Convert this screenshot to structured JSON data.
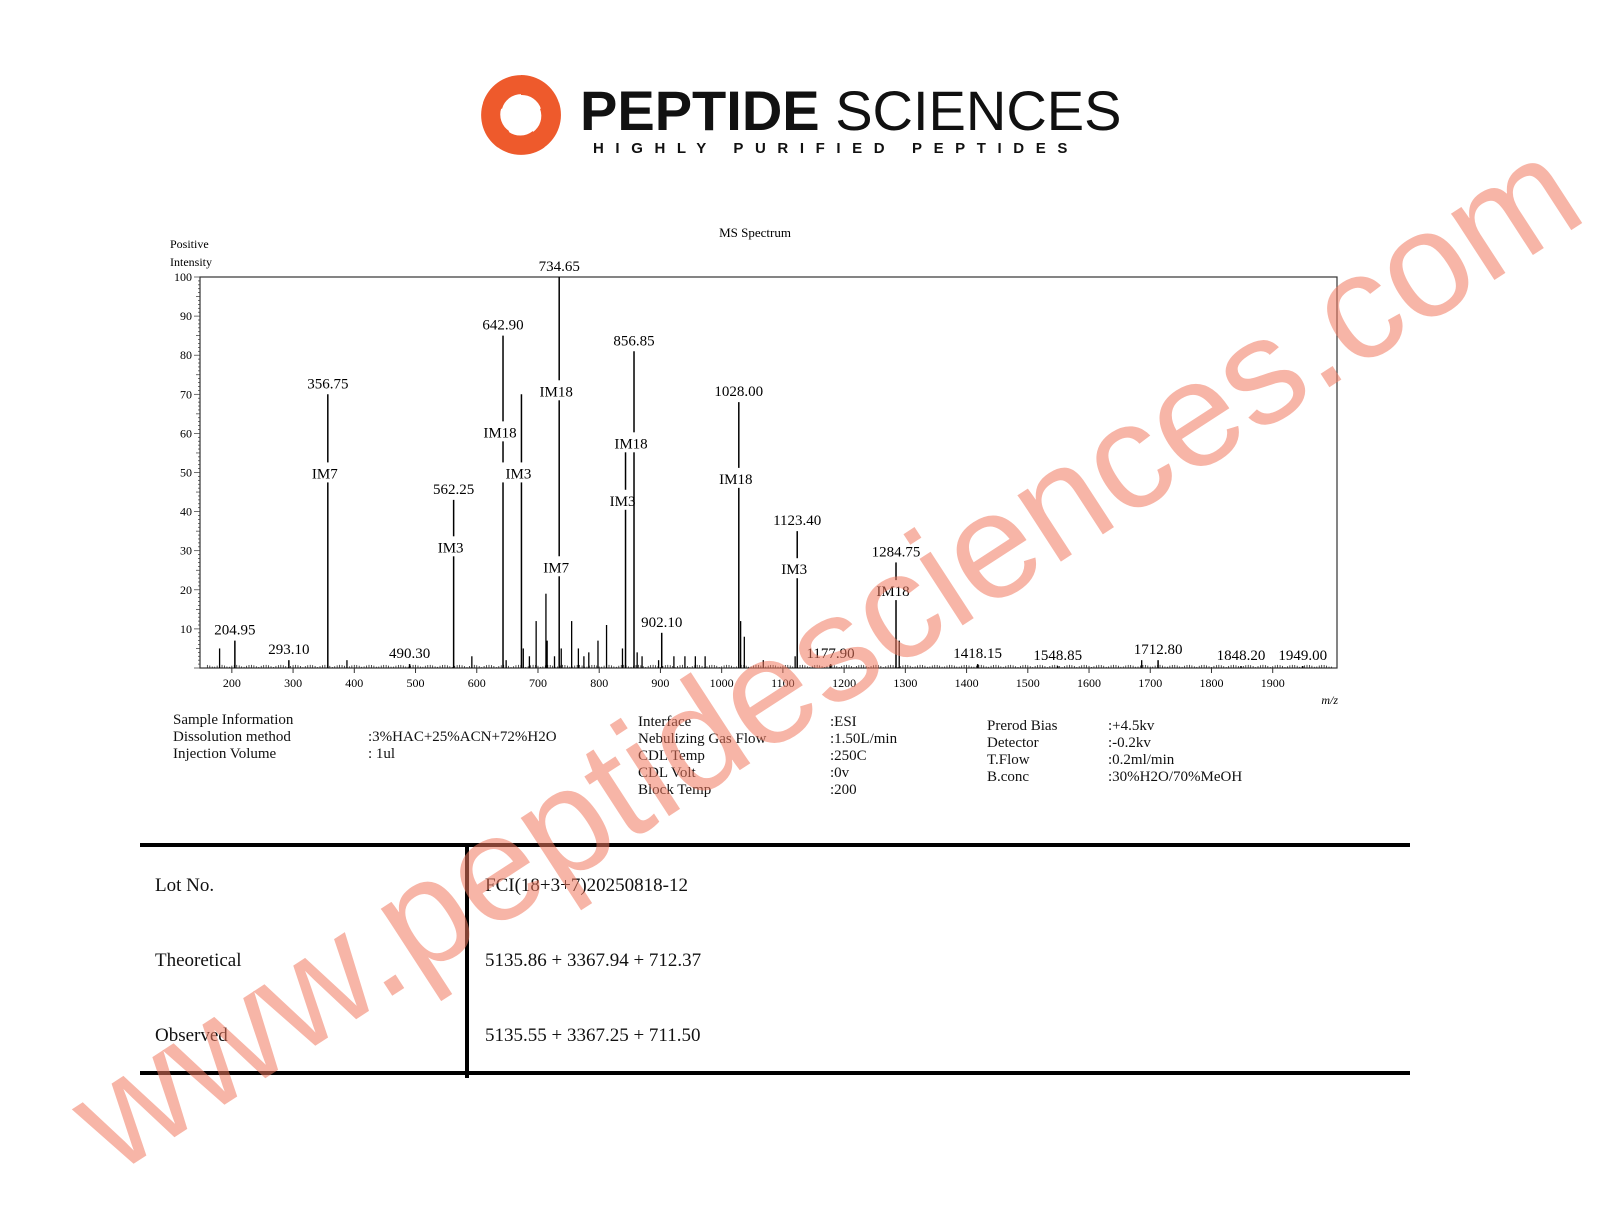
{
  "brand": {
    "name_bold": "PEPTIDE",
    "name_light": "SCIENCES",
    "tagline": "HIGHLY PURIFIED PEPTIDES",
    "logo_color": "#ee5a2c"
  },
  "watermark": "www.peptidesciences.com",
  "chart_data": {
    "type": "bar",
    "title": "MS Spectrum",
    "ylabel": "Positive Intensity",
    "xlabel": "m/z",
    "xlim": [
      148,
      2005
    ],
    "ylim": [
      0,
      100
    ],
    "xticks": [
      200,
      300,
      400,
      500,
      600,
      700,
      800,
      900,
      1000,
      1100,
      1200,
      1300,
      1400,
      1500,
      1600,
      1700,
      1800,
      1900
    ],
    "yticks": [
      10,
      20,
      30,
      40,
      50,
      60,
      70,
      80,
      90,
      100
    ],
    "grid": false,
    "bar_color": "#000000",
    "labeled_peaks": [
      {
        "mz": 204.95,
        "intensity": 7,
        "label": "204.95",
        "tags": []
      },
      {
        "mz": 293.1,
        "intensity": 2,
        "label": "293.10",
        "tags": []
      },
      {
        "mz": 356.75,
        "intensity": 70,
        "label": "356.75",
        "tags": [
          "IM7"
        ]
      },
      {
        "mz": 490.3,
        "intensity": 1,
        "label": "490.30",
        "tags": []
      },
      {
        "mz": 562.25,
        "intensity": 43,
        "label": "562.25",
        "tags": [
          "IM3"
        ]
      },
      {
        "mz": 642.9,
        "intensity": 85,
        "label": "642.90",
        "tags": [
          "IM18"
        ]
      },
      {
        "mz": 673.0,
        "intensity": 70,
        "label": "",
        "tags": [
          "IM3"
        ]
      },
      {
        "mz": 734.65,
        "intensity": 100,
        "label": "734.65",
        "tags": [
          "IM18",
          "IM7"
        ]
      },
      {
        "mz": 843.0,
        "intensity": 60,
        "label": "",
        "tags": [
          "IM3"
        ]
      },
      {
        "mz": 856.85,
        "intensity": 81,
        "label": "856.85",
        "tags": [
          "IM18"
        ]
      },
      {
        "mz": 902.1,
        "intensity": 9,
        "label": "902.10",
        "tags": []
      },
      {
        "mz": 1028.0,
        "intensity": 68,
        "label": "1028.00",
        "tags": [
          "IM18"
        ]
      },
      {
        "mz": 1123.4,
        "intensity": 35,
        "label": "1123.40",
        "tags": [
          "IM3"
        ]
      },
      {
        "mz": 1177.9,
        "intensity": 1,
        "label": "1177.90",
        "tags": []
      },
      {
        "mz": 1284.75,
        "intensity": 27,
        "label": "1284.75",
        "tags": [
          "IM18"
        ]
      },
      {
        "mz": 1418.15,
        "intensity": 1,
        "label": "1418.15",
        "tags": []
      },
      {
        "mz": 1548.85,
        "intensity": 0.5,
        "label": "1548.85",
        "tags": []
      },
      {
        "mz": 1712.8,
        "intensity": 2,
        "label": "1712.80",
        "tags": []
      },
      {
        "mz": 1848.2,
        "intensity": 0.5,
        "label": "1848.20",
        "tags": []
      },
      {
        "mz": 1949.0,
        "intensity": 0.5,
        "label": "1949.00",
        "tags": []
      }
    ],
    "minor_peaks": [
      {
        "mz": 180,
        "intensity": 5
      },
      {
        "mz": 388,
        "intensity": 2
      },
      {
        "mz": 592,
        "intensity": 3
      },
      {
        "mz": 648,
        "intensity": 2
      },
      {
        "mz": 676,
        "intensity": 5
      },
      {
        "mz": 686,
        "intensity": 3
      },
      {
        "mz": 697,
        "intensity": 12
      },
      {
        "mz": 713,
        "intensity": 19
      },
      {
        "mz": 715,
        "intensity": 7
      },
      {
        "mz": 727,
        "intensity": 3
      },
      {
        "mz": 738,
        "intensity": 5
      },
      {
        "mz": 755,
        "intensity": 12
      },
      {
        "mz": 766,
        "intensity": 5
      },
      {
        "mz": 775,
        "intensity": 3
      },
      {
        "mz": 783,
        "intensity": 4
      },
      {
        "mz": 798,
        "intensity": 7
      },
      {
        "mz": 812,
        "intensity": 11
      },
      {
        "mz": 838,
        "intensity": 5
      },
      {
        "mz": 862,
        "intensity": 4
      },
      {
        "mz": 870,
        "intensity": 3
      },
      {
        "mz": 897,
        "intensity": 2
      },
      {
        "mz": 922,
        "intensity": 3
      },
      {
        "mz": 940,
        "intensity": 3
      },
      {
        "mz": 957,
        "intensity": 3
      },
      {
        "mz": 973,
        "intensity": 3
      },
      {
        "mz": 1031,
        "intensity": 12
      },
      {
        "mz": 1037,
        "intensity": 8
      },
      {
        "mz": 1068,
        "intensity": 2
      },
      {
        "mz": 1120,
        "intensity": 3
      },
      {
        "mz": 1290,
        "intensity": 7
      },
      {
        "mz": 1686,
        "intensity": 2
      }
    ]
  },
  "sample_info": {
    "rows": [
      {
        "label": "Sample Information",
        "value": ""
      },
      {
        "label": "Dissolution method",
        "value": ":3%HAC+25%ACN+72%H2O"
      },
      {
        "label": "Injection Volume",
        "value": ": 1ul"
      }
    ]
  },
  "instrument": {
    "rows": [
      {
        "label": "Interface",
        "value": ":ESI"
      },
      {
        "label": "Nebulizing Gas Flow",
        "value": ":1.50L/min"
      },
      {
        "label": "CDL Temp",
        "value": ":250C"
      },
      {
        "label": "CDL Volt",
        "value": ":0v"
      },
      {
        "label": "Block Temp",
        "value": ":200"
      }
    ]
  },
  "detector": {
    "rows": [
      {
        "label": "Prerod Bias",
        "value": ":+4.5kv"
      },
      {
        "label": "Detector",
        "value": ":-0.2kv"
      },
      {
        "label": "T.Flow",
        "value": ":0.2ml/min"
      },
      {
        "label": "B.conc",
        "value": ":30%H2O/70%MeOH"
      }
    ]
  },
  "results": {
    "rows": [
      {
        "label": "Lot No.",
        "value": "FCI(18+3+7)20250818-12"
      },
      {
        "label": "Theoretical",
        "value": "5135.86 + 3367.94 + 712.37"
      },
      {
        "label": "Observed",
        "value": "5135.55 + 3367.25 + 711.50"
      }
    ]
  }
}
